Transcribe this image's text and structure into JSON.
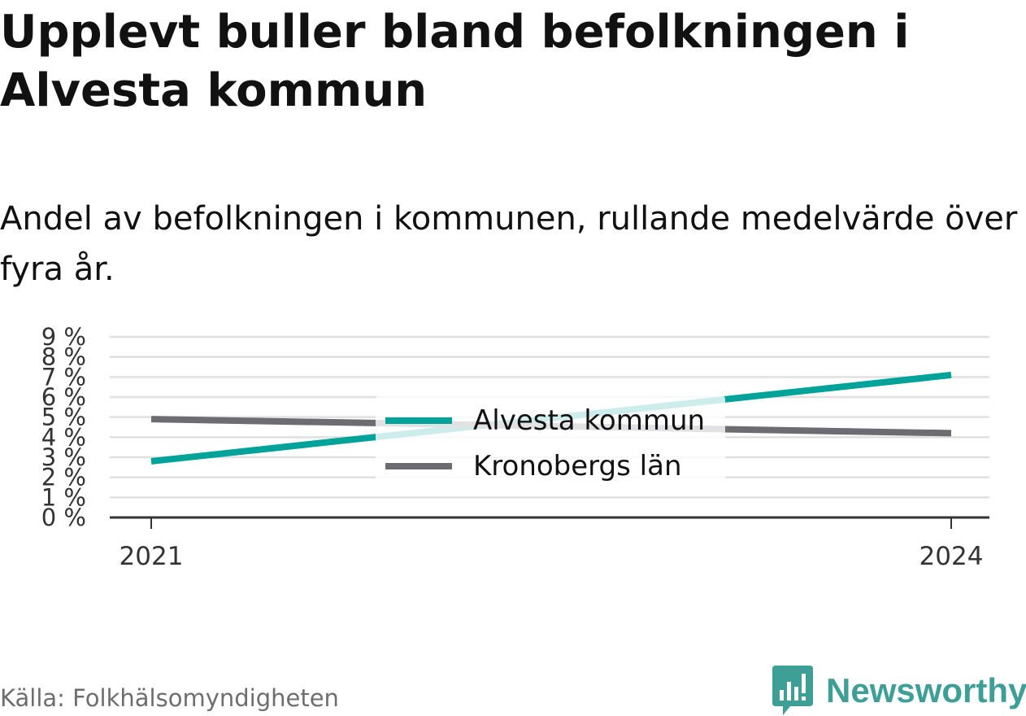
{
  "header": {
    "title": "Upplevt buller bland befolkningen i Alvesta kommun",
    "subtitle": "Andel av befolkningen i kommunen, rullande medelvärde över fyra år."
  },
  "footer": {
    "source": "Källa: Folkhälsomyndigheten",
    "brand": "Newsworthy"
  },
  "colors": {
    "alvesta": "#00a39a",
    "kronoberg": "#6d6c73",
    "grid": "#e0e0e0",
    "axis": "#333333",
    "brand": "#3e9f97"
  },
  "chart_data": {
    "type": "line",
    "x": [
      "2021",
      "2024"
    ],
    "ylim": [
      0,
      9
    ],
    "yticks": [
      "0 %",
      "1 %",
      "2 %",
      "3 %",
      "4 %",
      "5 %",
      "6 %",
      "7 %",
      "8 %",
      "9 %"
    ],
    "grid": true,
    "legend_position": "center",
    "series": [
      {
        "name": "Alvesta kommun",
        "values": [
          2.8,
          7.1
        ],
        "color": "#00a39a"
      },
      {
        "name": "Kronobergs län",
        "values": [
          4.9,
          4.2
        ],
        "color": "#6d6c73"
      }
    ]
  }
}
